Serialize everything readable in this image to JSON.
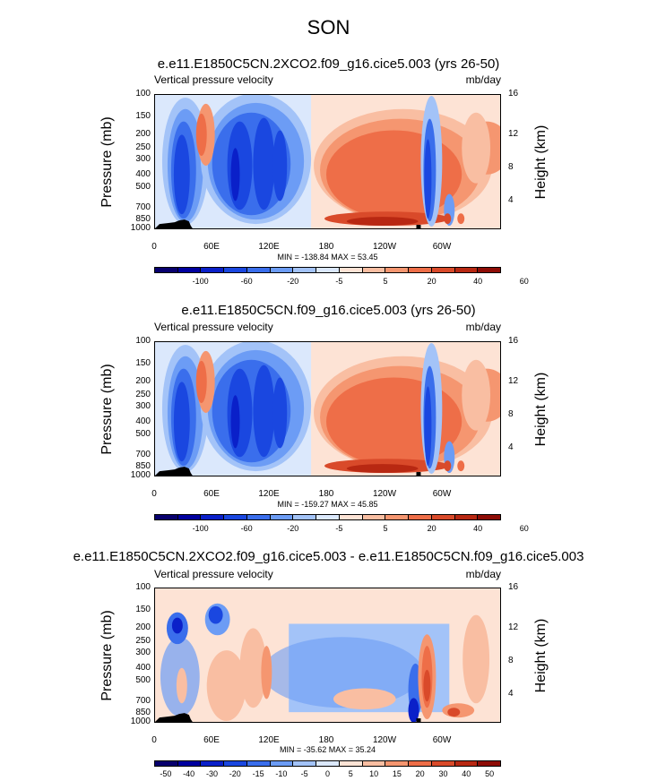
{
  "title": "SON",
  "cmaps": {
    "a": [
      "#08006e",
      "#00009f",
      "#0a20c9",
      "#1a47e0",
      "#3a6eec",
      "#6c9cf5",
      "#a3c3f8",
      "#dbe8fc",
      "#fde3d5",
      "#f9bea2",
      "#f59670",
      "#ee6e48",
      "#d94a2a",
      "#b82812",
      "#8e0c06"
    ],
    "b": [
      "#08006e",
      "#00009f",
      "#0a20c9",
      "#1a47e0",
      "#3a6eec",
      "#6c9cf5",
      "#a3c3f8",
      "#dbe8fc",
      "#fde3d5",
      "#f9bea2",
      "#f59670",
      "#ee6e48",
      "#d94a2a",
      "#b82812",
      "#8e0c06"
    ]
  },
  "panels": [
    {
      "title": "e.e11.E1850C5CN.2XCO2.f09_g16.cice5.003 (yrs 26-50)",
      "left_string": "Vertical pressure velocity",
      "right_string": "mb/day",
      "ylabel": "Pressure (mb)",
      "ylabel_right": "Height (km)",
      "minmax": "MIN = -138.84   MAX =  53.45",
      "colorbar_labels": [
        "-100",
        "-60",
        "-20",
        "-5",
        "5",
        "20",
        "40",
        "60"
      ],
      "cmap": "a"
    },
    {
      "title": "e.e11.E1850C5CN.f09_g16.cice5.003 (yrs 26-50)",
      "left_string": "Vertical pressure velocity",
      "right_string": "mb/day",
      "ylabel": "Pressure (mb)",
      "ylabel_right": "Height (km)",
      "minmax": "MIN = -159.27   MAX =  45.85",
      "colorbar_labels": [
        "-100",
        "-60",
        "-20",
        "-5",
        "5",
        "20",
        "40",
        "60"
      ],
      "cmap": "a"
    },
    {
      "title": "e.e11.E1850C5CN.2XCO2.f09_g16.cice5.003 - e.e11.E1850C5CN.f09_g16.cice5.003",
      "left_string": "Vertical pressure velocity",
      "right_string": "mb/day",
      "ylabel": "Pressure (mb)",
      "ylabel_right": "Height (km)",
      "minmax": "MIN = -35.62   MAX =  35.24",
      "colorbar_labels": [
        "-50",
        "-40",
        "-30",
        "-20",
        "-15",
        "-10",
        "-5",
        "0",
        "5",
        "10",
        "15",
        "20",
        "30",
        "40",
        "50"
      ],
      "cmap": "b"
    }
  ],
  "chart_data": {
    "type": "heatmap",
    "title": "SON",
    "x_ticks": [
      "0",
      "60E",
      "120E",
      "180",
      "120W",
      "60W"
    ],
    "y_ticks": [
      "100",
      "150",
      "200",
      "250",
      "300",
      "400",
      "500",
      "700",
      "850",
      "1000"
    ],
    "y_ticks_right": [
      "16",
      "12",
      "8",
      "4"
    ],
    "panels": [
      {
        "name": "e.e11.E1850C5CN.2XCO2.f09_g16.cice5.003 (yrs 26-50)",
        "min": -138.84,
        "max": 53.45
      },
      {
        "name": "e.e11.E1850C5CN.f09_g16.cice5.003 (yrs 26-50)",
        "min": -159.27,
        "max": 45.85
      },
      {
        "name": "e.e11.E1850C5CN.2XCO2.f09_g16.cice5.003 - e.e11.E1850C5CN.f09_g16.cice5.003",
        "min": -35.62,
        "max": 35.24
      }
    ]
  }
}
